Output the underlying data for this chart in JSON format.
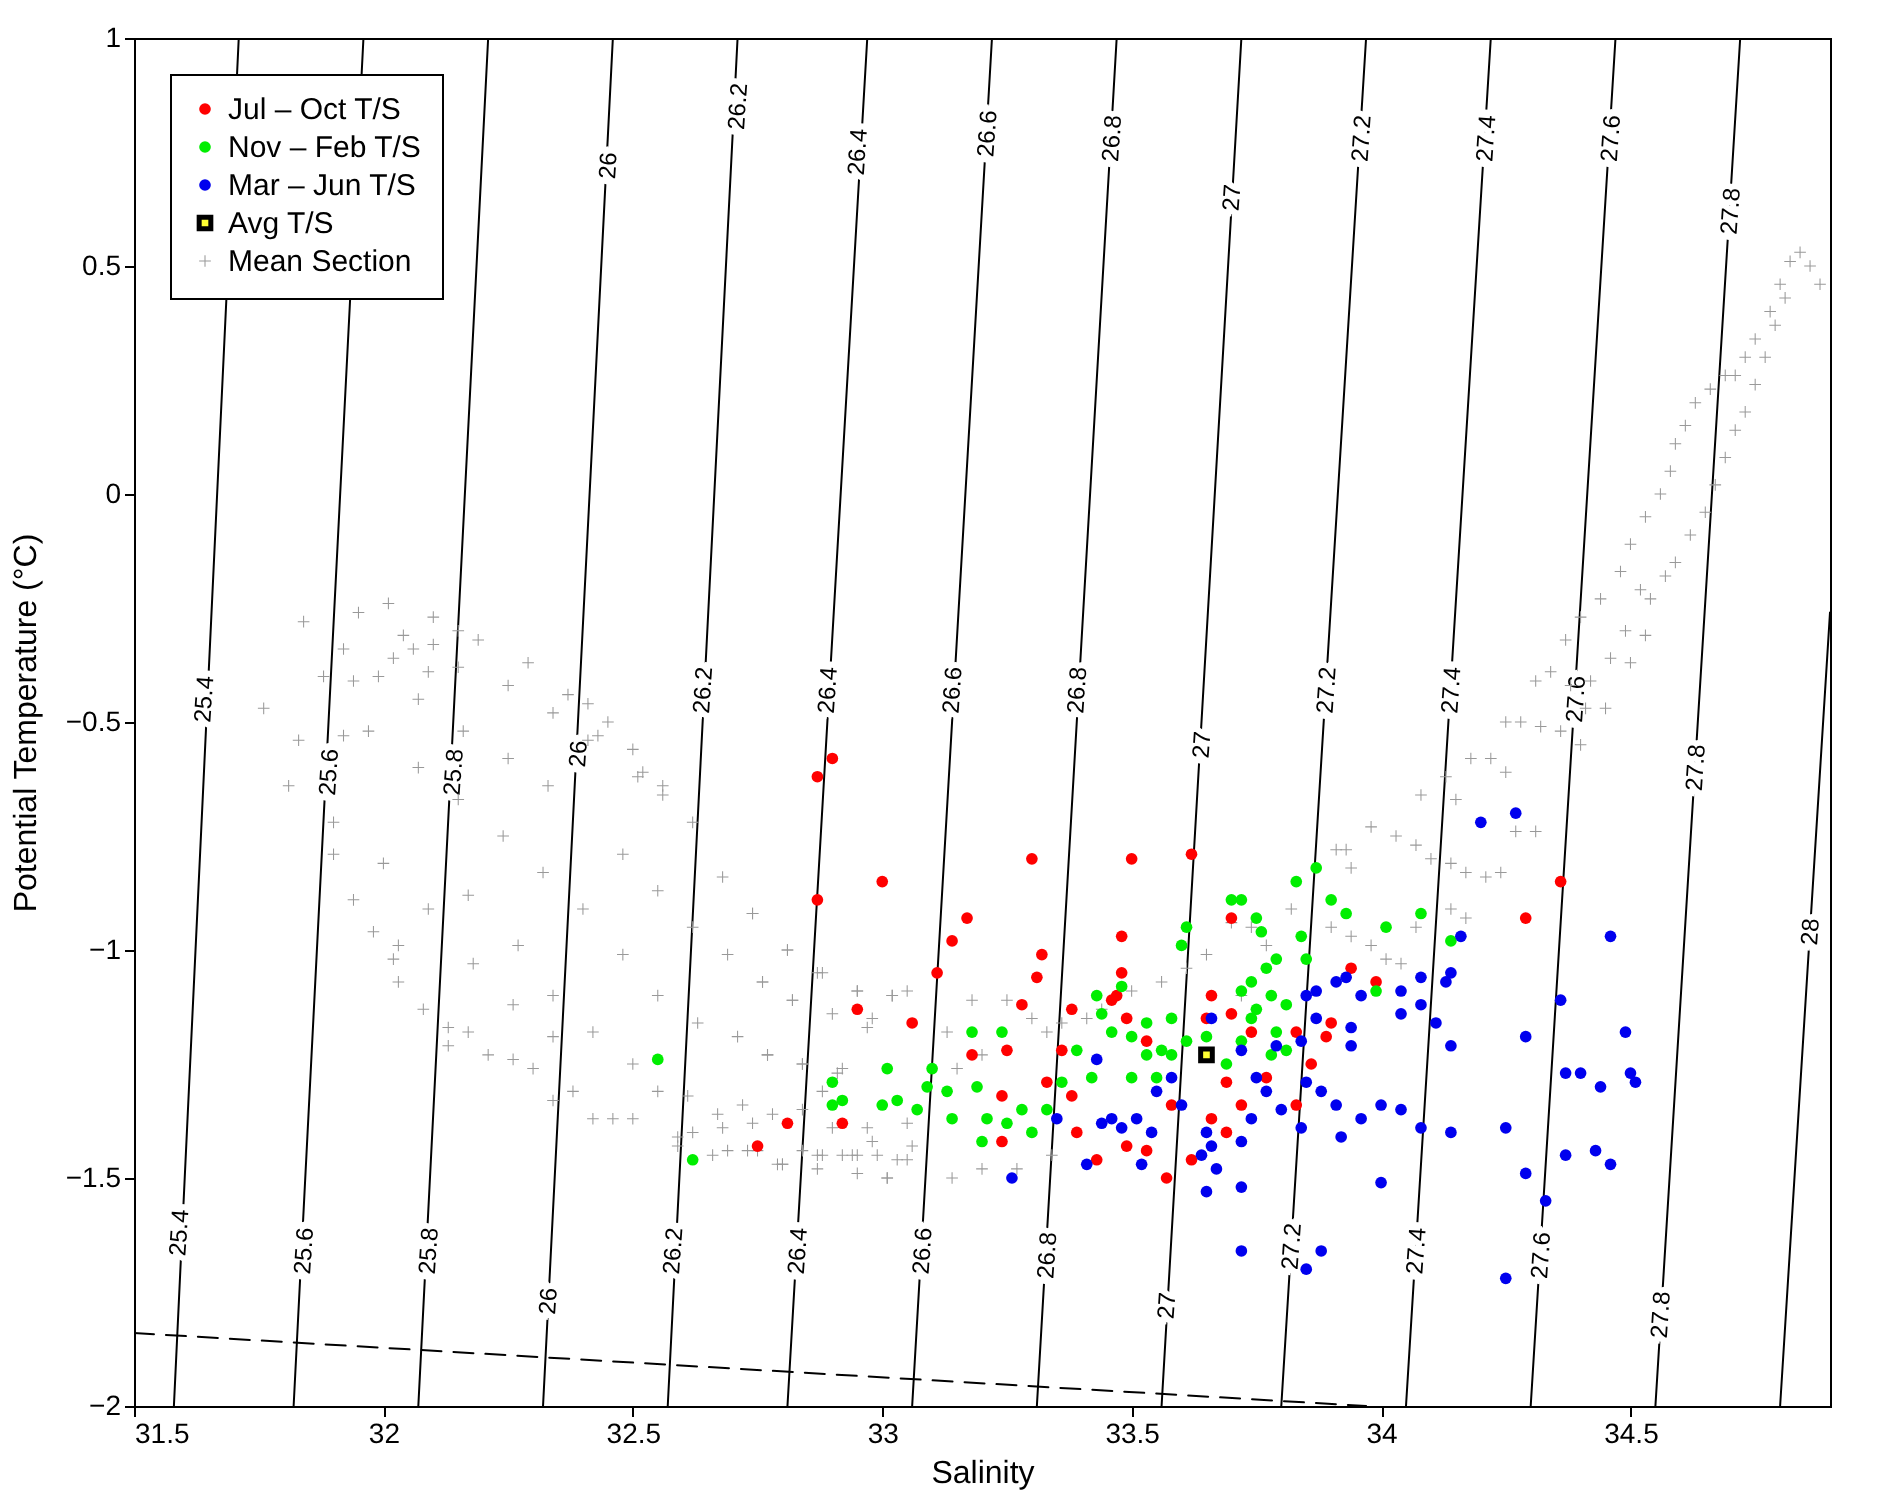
{
  "chart_data": {
    "type": "scatter",
    "xlabel": "Salinity",
    "ylabel": "Potential Temperature (°C)",
    "xlim": [
      31.5,
      34.9
    ],
    "ylim": [
      -2,
      1
    ],
    "xticks": [
      31.5,
      32,
      32.5,
      33,
      33.5,
      34,
      34.5
    ],
    "yticks": [
      -2,
      -1.5,
      -1,
      -0.5,
      0,
      0.5,
      1
    ],
    "legend": "top left",
    "series": [
      {
        "type": "line",
        "color": "#000000",
        "x": [
          31.58,
          31.71
        ],
        "values": [
          -2,
          1
        ]
      },
      {
        "type": "line",
        "color": "#000000",
        "x": [
          31.82,
          31.96
        ],
        "values": [
          -2,
          1
        ]
      },
      {
        "type": "line",
        "color": "#000000",
        "x": [
          32.07,
          32.21
        ],
        "values": [
          -2,
          1
        ]
      },
      {
        "type": "line",
        "color": "#000000",
        "x": [
          32.32,
          32.46
        ],
        "values": [
          -2,
          1
        ]
      },
      {
        "type": "line",
        "color": "#000000",
        "x": [
          32.57,
          32.71
        ],
        "values": [
          -2,
          1
        ]
      },
      {
        "type": "line",
        "color": "#000000",
        "x": [
          32.81,
          32.97
        ],
        "values": [
          -2,
          1
        ]
      },
      {
        "type": "line",
        "color": "#000000",
        "x": [
          33.06,
          33.22
        ],
        "values": [
          -2,
          1
        ]
      },
      {
        "type": "line",
        "color": "#000000",
        "x": [
          33.31,
          33.47
        ],
        "values": [
          -2,
          1
        ]
      },
      {
        "type": "line",
        "color": "#000000",
        "x": [
          33.56,
          33.72
        ],
        "values": [
          -2,
          1
        ]
      },
      {
        "type": "line",
        "color": "#000000",
        "x": [
          33.8,
          33.97
        ],
        "values": [
          -2,
          1
        ]
      },
      {
        "type": "line",
        "color": "#000000",
        "x": [
          34.05,
          34.22
        ],
        "values": [
          -2,
          1
        ]
      },
      {
        "type": "line",
        "color": "#000000",
        "x": [
          34.3,
          34.47
        ],
        "values": [
          -2,
          1
        ]
      },
      {
        "type": "line",
        "color": "#000000",
        "x": [
          34.55,
          34.72
        ],
        "values": [
          -2,
          1
        ]
      },
      {
        "type": "line",
        "color": "#000000",
        "x": [
          34.8,
          34.9
        ],
        "values": [
          -2,
          -0.26
        ]
      },
      {
        "type": "line",
        "color": "#000000",
        "line_style": "dashed",
        "x": [
          31.5,
          33.97
        ],
        "values": [
          -1.84,
          -2
        ]
      },
      {
        "name": "Jul – Oct T/S",
        "color": "#ff0000",
        "marker": "circle",
        "x": [
          32.9,
          32.87,
          32.87,
          33.0,
          33.17,
          33.14,
          33.11,
          33.32,
          33.31,
          33.3,
          33.5,
          33.62,
          33.48,
          33.48,
          33.46,
          33.47,
          33.49,
          33.38,
          33.28,
          33.06,
          32.95,
          32.92,
          32.81,
          32.75,
          33.18,
          33.25,
          33.24,
          33.24,
          33.36,
          33.33,
          33.38,
          33.39,
          33.43,
          33.49,
          33.53,
          33.57,
          33.62,
          33.53,
          33.58,
          33.66,
          33.65,
          33.7,
          33.74,
          33.69,
          33.72,
          33.66,
          33.69,
          33.77,
          33.83,
          33.86,
          33.89,
          33.9,
          33.94,
          33.99,
          33.83,
          33.7,
          34.36,
          34.29
        ],
        "values": [
          -0.58,
          -0.62,
          -0.89,
          -0.85,
          -0.93,
          -0.98,
          -1.05,
          -1.01,
          -1.06,
          -0.8,
          -0.8,
          -0.79,
          -0.97,
          -1.05,
          -1.11,
          -1.1,
          -1.15,
          -1.13,
          -1.12,
          -1.16,
          -1.13,
          -1.38,
          -1.38,
          -1.43,
          -1.23,
          -1.22,
          -1.32,
          -1.42,
          -1.22,
          -1.29,
          -1.32,
          -1.4,
          -1.46,
          -1.43,
          -1.44,
          -1.5,
          -1.46,
          -1.2,
          -1.34,
          -1.1,
          -1.15,
          -1.14,
          -1.18,
          -1.29,
          -1.34,
          -1.37,
          -1.4,
          -1.28,
          -1.34,
          -1.25,
          -1.19,
          -1.16,
          -1.04,
          -1.07,
          -1.18,
          -0.93,
          -0.85,
          -0.93
        ]
      },
      {
        "name": "Nov – Feb T/S",
        "color": "#00ee00",
        "marker": "circle",
        "x": [
          33.61,
          33.6,
          33.7,
          33.72,
          33.75,
          33.76,
          33.83,
          33.87,
          33.9,
          33.93,
          34.01,
          34.08,
          34.14,
          33.84,
          33.85,
          33.79,
          33.77,
          33.74,
          33.72,
          33.78,
          33.81,
          33.75,
          33.74,
          33.72,
          33.79,
          33.81,
          33.78,
          33.69,
          33.65,
          33.61,
          33.58,
          33.56,
          33.53,
          33.5,
          33.46,
          33.43,
          33.48,
          33.44,
          33.42,
          33.39,
          33.36,
          33.33,
          33.3,
          33.28,
          33.24,
          33.25,
          33.2,
          33.21,
          33.19,
          33.18,
          33.14,
          33.13,
          33.1,
          33.09,
          33.07,
          33.03,
          33.01,
          33.0,
          32.9,
          32.9,
          32.92,
          33.99,
          33.5,
          33.53,
          33.58,
          33.55,
          32.55,
          32.62
        ],
        "values": [
          -0.95,
          -0.99,
          -0.89,
          -0.89,
          -0.93,
          -0.96,
          -0.85,
          -0.82,
          -0.89,
          -0.92,
          -0.95,
          -0.92,
          -0.98,
          -0.97,
          -1.02,
          -1.02,
          -1.04,
          -1.07,
          -1.09,
          -1.1,
          -1.12,
          -1.13,
          -1.15,
          -1.2,
          -1.18,
          -1.22,
          -1.23,
          -1.25,
          -1.19,
          -1.2,
          -1.15,
          -1.22,
          -1.23,
          -1.19,
          -1.18,
          -1.1,
          -1.08,
          -1.14,
          -1.28,
          -1.22,
          -1.29,
          -1.35,
          -1.4,
          -1.35,
          -1.18,
          -1.38,
          -1.42,
          -1.37,
          -1.3,
          -1.18,
          -1.37,
          -1.31,
          -1.26,
          -1.3,
          -1.35,
          -1.33,
          -1.26,
          -1.34,
          -1.29,
          -1.34,
          -1.33,
          -1.09,
          -1.28,
          -1.16,
          -1.23,
          -1.28,
          -1.24,
          -1.46
        ]
      },
      {
        "name": "Mar – Jun T/S",
        "color": "#0000ee",
        "marker": "circle",
        "x": [
          34.2,
          34.27,
          34.16,
          34.46,
          34.36,
          34.29,
          34.49,
          34.37,
          34.4,
          34.44,
          34.5,
          34.51,
          34.37,
          34.43,
          34.46,
          34.29,
          34.33,
          34.25,
          34.25,
          34.0,
          34.14,
          34.14,
          34.08,
          34.11,
          34.08,
          34.08,
          34.04,
          34.04,
          34.13,
          34.14,
          34.0,
          34.04,
          33.96,
          33.92,
          33.91,
          33.94,
          33.94,
          33.96,
          33.93,
          33.91,
          33.87,
          33.85,
          33.87,
          33.84,
          33.79,
          33.85,
          33.88,
          33.84,
          33.8,
          33.75,
          33.77,
          33.74,
          33.72,
          33.66,
          33.65,
          33.67,
          33.64,
          33.65,
          33.72,
          33.72,
          33.85,
          33.88,
          33.6,
          33.54,
          33.55,
          33.51,
          33.48,
          33.46,
          33.44,
          33.52,
          33.41,
          33.26,
          33.43,
          33.35,
          33.66,
          33.72,
          33.58
        ],
        "values": [
          -0.72,
          -0.7,
          -0.97,
          -0.97,
          -1.11,
          -1.19,
          -1.18,
          -1.27,
          -1.27,
          -1.3,
          -1.27,
          -1.29,
          -1.45,
          -1.44,
          -1.47,
          -1.49,
          -1.55,
          -1.39,
          -1.72,
          -1.51,
          -1.21,
          -1.4,
          -1.39,
          -1.16,
          -1.12,
          -1.06,
          -1.09,
          -1.14,
          -1.07,
          -1.05,
          -1.34,
          -1.35,
          -1.37,
          -1.41,
          -1.34,
          -1.17,
          -1.21,
          -1.1,
          -1.06,
          -1.07,
          -1.09,
          -1.1,
          -1.15,
          -1.2,
          -1.21,
          -1.29,
          -1.31,
          -1.39,
          -1.35,
          -1.28,
          -1.31,
          -1.37,
          -1.42,
          -1.43,
          -1.4,
          -1.48,
          -1.45,
          -1.53,
          -1.52,
          -1.66,
          -1.7,
          -1.66,
          -1.34,
          -1.4,
          -1.31,
          -1.37,
          -1.39,
          -1.37,
          -1.38,
          -1.47,
          -1.47,
          -1.5,
          -1.24,
          -1.37,
          -1.15,
          -1.22,
          -1.28
        ]
      },
      {
        "name": "Avg T/S",
        "color": "#ffff33",
        "marker": "square",
        "x": [
          33.65
        ],
        "values": [
          -1.23
        ]
      },
      {
        "name": "Mean Section",
        "color": "#999999",
        "marker": "cross",
        "x": [
          31.84,
          31.95,
          32.01,
          32.1,
          32.04,
          32.15,
          32.19,
          31.92,
          32.02,
          32.06,
          32.1,
          32.15,
          32.09,
          31.99,
          31.94,
          31.88,
          31.76,
          32.07,
          32.25,
          32.29,
          32.34,
          32.37,
          32.41,
          32.45,
          32.43,
          31.83,
          31.92,
          31.97,
          32.16,
          32.25,
          32.07,
          32.15,
          32.33,
          32.41,
          32.5,
          32.52,
          32.56,
          32.51,
          32.56,
          31.81,
          31.9,
          31.9,
          31.94,
          31.98,
          32.0,
          32.09,
          32.17,
          32.24,
          32.32,
          32.4,
          32.48,
          32.55,
          32.62,
          32.68,
          32.62,
          32.74,
          32.81,
          32.69,
          32.76,
          32.88,
          33.02,
          32.95,
          32.97,
          32.9,
          32.82,
          32.84,
          32.77,
          32.71,
          32.63,
          32.55,
          32.48,
          32.42,
          32.5,
          32.55,
          32.5,
          32.46,
          32.42,
          32.38,
          32.34,
          32.3,
          32.26,
          32.21,
          32.17,
          32.13,
          32.13,
          32.08,
          32.03,
          32.02,
          32.03,
          32.27,
          32.18,
          32.26,
          32.34,
          32.34,
          32.72,
          32.74,
          32.67,
          32.62,
          32.66,
          32.69,
          32.73,
          32.79,
          32.84,
          32.88,
          32.92,
          32.95,
          32.99,
          33.03,
          33.05,
          33.01,
          32.95,
          32.87,
          32.8,
          32.97,
          33.05,
          32.92,
          32.84,
          32.78,
          32.88,
          32.61,
          32.59,
          32.59,
          32.68,
          32.74,
          32.76,
          32.81,
          32.87,
          32.82,
          32.95,
          33.02,
          32.77,
          32.84,
          32.91,
          32.98,
          33.05,
          33.13,
          33.18,
          33.25,
          33.15,
          33.2,
          33.3,
          33.33,
          33.36,
          33.41,
          33.44,
          33.5,
          33.56,
          33.61,
          33.65,
          33.7,
          33.74,
          33.77,
          33.72,
          33.82,
          33.91,
          33.93,
          33.94,
          33.9,
          33.94,
          33.98,
          34.01,
          34.04,
          34.07,
          33.98,
          34.03,
          34.07,
          34.1,
          34.14,
          34.17,
          34.21,
          34.24,
          34.13,
          34.08,
          34.15,
          34.18,
          34.22,
          34.25,
          34.27,
          34.31,
          34.25,
          34.28,
          34.32,
          34.36,
          34.4,
          34.31,
          34.34,
          34.38,
          34.42,
          34.41,
          34.45,
          34.46,
          34.5,
          34.14,
          34.17,
          33.06,
          33.01,
          32.94,
          32.87,
          32.8,
          32.75,
          33.14,
          33.2,
          33.27,
          33.34,
          32.9,
          32.98,
          34.37,
          34.4,
          34.44,
          34.48,
          34.5,
          34.53,
          34.56,
          34.58,
          34.59,
          34.61,
          34.63,
          34.66,
          34.69,
          34.71,
          34.73,
          34.75,
          34.78,
          34.8,
          34.82,
          34.84,
          34.86,
          34.88,
          34.52,
          34.54,
          34.57,
          34.59,
          34.62,
          34.65,
          34.67,
          34.69,
          34.71,
          34.73,
          34.75,
          34.77,
          34.79,
          34.81,
          34.49,
          34.53
        ],
        "values": [
          -0.28,
          -0.26,
          -0.24,
          -0.27,
          -0.31,
          -0.3,
          -0.32,
          -0.34,
          -0.36,
          -0.34,
          -0.33,
          -0.38,
          -0.39,
          -0.4,
          -0.41,
          -0.4,
          -0.47,
          -0.45,
          -0.42,
          -0.37,
          -0.48,
          -0.44,
          -0.46,
          -0.5,
          -0.53,
          -0.54,
          -0.53,
          -0.52,
          -0.52,
          -0.58,
          -0.6,
          -0.67,
          -0.64,
          -0.54,
          -0.56,
          -0.61,
          -0.64,
          -0.62,
          -0.66,
          -0.64,
          -0.72,
          -0.79,
          -0.89,
          -0.96,
          -0.81,
          -0.91,
          -0.88,
          -0.75,
          -0.83,
          -0.91,
          -0.79,
          -0.87,
          -0.72,
          -0.84,
          -0.95,
          -0.92,
          -1.0,
          -1.01,
          -1.07,
          -1.05,
          -1.1,
          -1.09,
          -1.17,
          -1.14,
          -1.11,
          -1.25,
          -1.23,
          -1.19,
          -1.16,
          -1.1,
          -1.01,
          -1.18,
          -1.25,
          -1.31,
          -1.37,
          -1.37,
          -1.37,
          -1.31,
          -1.33,
          -1.26,
          -1.24,
          -1.23,
          -1.18,
          -1.17,
          -1.21,
          -1.13,
          -0.99,
          -1.02,
          -1.07,
          -0.99,
          -1.03,
          -1.12,
          -1.1,
          -1.19,
          -1.34,
          -1.38,
          -1.36,
          -1.4,
          -1.45,
          -1.44,
          -1.44,
          -1.47,
          -1.44,
          -1.45,
          -1.45,
          -1.45,
          -1.45,
          -1.46,
          -1.46,
          -1.5,
          -1.49,
          -1.48,
          -1.47,
          -1.39,
          -1.38,
          -1.26,
          -1.35,
          -1.36,
          -1.31,
          -1.32,
          -1.41,
          -1.43,
          -1.39,
          -0.92,
          -1.07,
          -1.0,
          -1.05,
          -1.11,
          -1.09,
          -1.1,
          -1.23,
          -1.25,
          -1.27,
          -1.15,
          -1.09,
          -1.18,
          -1.11,
          -1.11,
          -1.26,
          -1.23,
          -1.15,
          -1.18,
          -1.16,
          -1.15,
          -1.13,
          -1.09,
          -1.07,
          -1.04,
          -1.01,
          -0.94,
          -0.95,
          -0.99,
          -1.1,
          -0.91,
          -0.78,
          -0.78,
          -0.82,
          -0.95,
          -0.97,
          -0.99,
          -1.02,
          -1.03,
          -0.95,
          -0.73,
          -0.75,
          -0.77,
          -0.8,
          -0.81,
          -0.83,
          -0.84,
          -0.83,
          -0.62,
          -0.66,
          -0.67,
          -0.58,
          -0.58,
          -0.61,
          -0.74,
          -0.74,
          -0.5,
          -0.5,
          -0.51,
          -0.52,
          -0.55,
          -0.41,
          -0.39,
          -0.42,
          -0.41,
          -0.47,
          -0.47,
          -0.36,
          -0.37,
          -0.91,
          -0.93,
          -1.43,
          -1.5,
          -1.45,
          -1.45,
          -1.47,
          -1.44,
          -1.5,
          -1.48,
          -1.48,
          -1.45,
          -1.39,
          -1.42,
          -0.32,
          -0.27,
          -0.23,
          -0.17,
          -0.11,
          -0.05,
          0.0,
          0.05,
          0.11,
          0.15,
          0.2,
          0.23,
          0.26,
          0.26,
          0.3,
          0.34,
          0.4,
          0.46,
          0.51,
          0.53,
          0.5,
          0.46,
          -0.21,
          -0.23,
          -0.18,
          -0.15,
          -0.09,
          -0.04,
          0.02,
          0.08,
          0.14,
          0.18,
          0.24,
          0.3,
          0.37,
          0.43,
          -0.3,
          -0.31
        ]
      }
    ],
    "annotations": [
      {
        "text": "26",
        "x": 32.45,
        "y": 0.72
      },
      {
        "text": "26.2",
        "x": 32.71,
        "y": 0.85
      },
      {
        "text": "26.4",
        "x": 32.95,
        "y": 0.75
      },
      {
        "text": "26.6",
        "x": 33.21,
        "y": 0.79
      },
      {
        "text": "26.8",
        "x": 33.46,
        "y": 0.78
      },
      {
        "text": "27",
        "x": 33.7,
        "y": 0.65
      },
      {
        "text": "27.2",
        "x": 33.96,
        "y": 0.78
      },
      {
        "text": "27.4",
        "x": 34.21,
        "y": 0.78
      },
      {
        "text": "27.6",
        "x": 34.46,
        "y": 0.78
      },
      {
        "text": "27.8",
        "x": 34.7,
        "y": 0.62
      },
      {
        "text": "25.4",
        "x": 31.64,
        "y": -0.45
      },
      {
        "text": "25.6",
        "x": 31.89,
        "y": -0.61
      },
      {
        "text": "25.8",
        "x": 32.14,
        "y": -0.61
      },
      {
        "text": "26",
        "x": 32.39,
        "y": -0.57
      },
      {
        "text": "26.2",
        "x": 32.64,
        "y": -0.43
      },
      {
        "text": "26.4",
        "x": 32.89,
        "y": -0.43
      },
      {
        "text": "26.6",
        "x": 33.14,
        "y": -0.43
      },
      {
        "text": "26.8",
        "x": 33.39,
        "y": -0.43
      },
      {
        "text": "27",
        "x": 33.64,
        "y": -0.55
      },
      {
        "text": "27.2",
        "x": 33.89,
        "y": -0.43
      },
      {
        "text": "27.4",
        "x": 34.14,
        "y": -0.43
      },
      {
        "text": "27.6",
        "x": 34.39,
        "y": -0.45
      },
      {
        "text": "27.8",
        "x": 34.63,
        "y": -0.6
      },
      {
        "text": "28",
        "x": 34.86,
        "y": -0.96
      },
      {
        "text": "25.4",
        "x": 31.59,
        "y": -1.62
      },
      {
        "text": "25.6",
        "x": 31.84,
        "y": -1.66
      },
      {
        "text": "25.8",
        "x": 32.09,
        "y": -1.66
      },
      {
        "text": "26",
        "x": 32.33,
        "y": -1.77
      },
      {
        "text": "26.2",
        "x": 32.58,
        "y": -1.66
      },
      {
        "text": "26.4",
        "x": 32.83,
        "y": -1.66
      },
      {
        "text": "26.6",
        "x": 33.08,
        "y": -1.66
      },
      {
        "text": "26.8",
        "x": 33.33,
        "y": -1.67
      },
      {
        "text": "27",
        "x": 33.57,
        "y": -1.78
      },
      {
        "text": "27.2",
        "x": 33.82,
        "y": -1.65
      },
      {
        "text": "27.4",
        "x": 34.07,
        "y": -1.66
      },
      {
        "text": "27.6",
        "x": 34.32,
        "y": -1.67
      },
      {
        "text": "27.8",
        "x": 34.56,
        "y": -1.8
      }
    ]
  }
}
